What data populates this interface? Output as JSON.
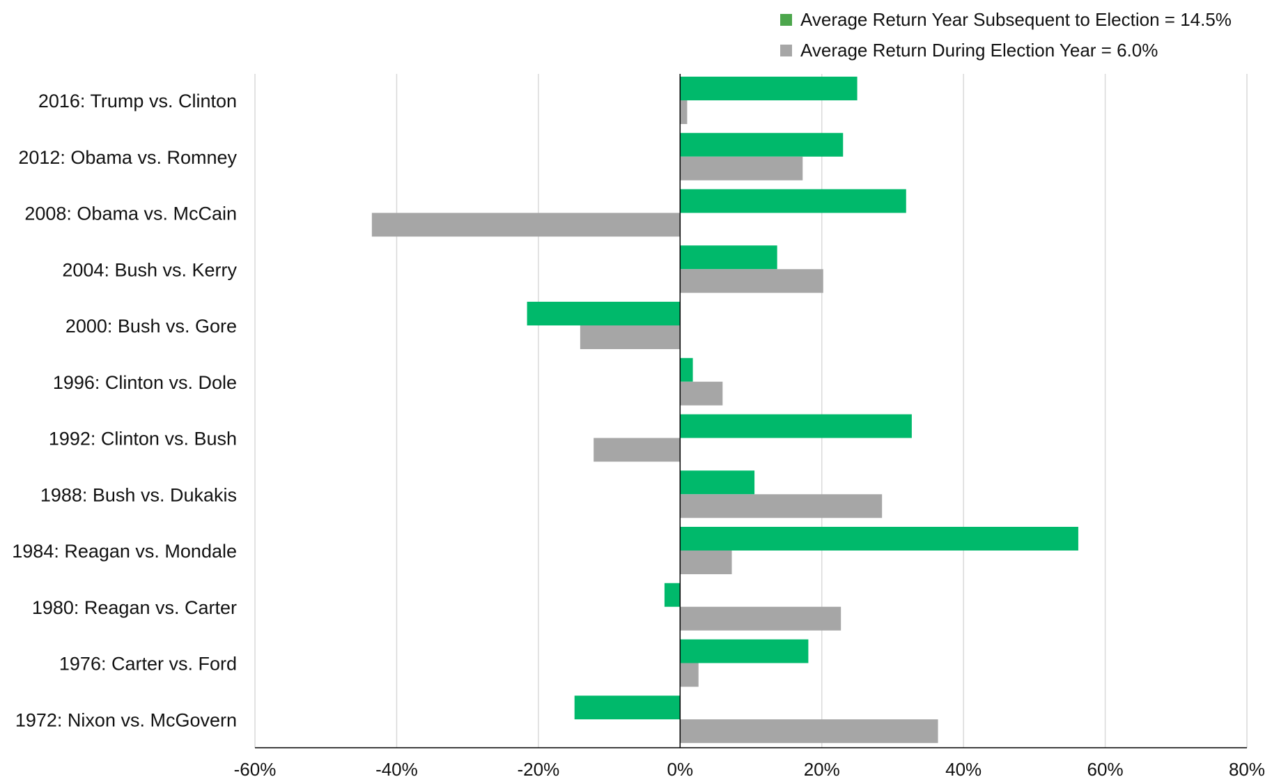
{
  "chart_data": {
    "type": "bar",
    "orientation": "horizontal",
    "categories": [
      "2016: Trump vs. Clinton",
      "2012: Obama vs. Romney",
      "2008: Obama vs. McCain",
      "2004: Bush vs. Kerry",
      "2000: Bush vs. Gore",
      "1996: Clinton vs. Dole",
      "1992: Clinton vs. Bush",
      "1988: Bush vs. Dukakis",
      "1984: Reagan vs. Mondale",
      "1980: Reagan vs. Carter",
      "1976: Carter vs. Ford",
      "1972: Nixon vs. McGovern"
    ],
    "series": [
      {
        "name": "Average Return Year Subsequent to Election = 14.5%",
        "color": "#00b96b",
        "legend_swatch_color": "#4ca64c",
        "values": [
          25.0,
          23.0,
          31.9,
          13.7,
          -21.6,
          1.8,
          32.7,
          10.5,
          56.2,
          -2.2,
          18.1,
          -14.9
        ]
      },
      {
        "name": "Average Return During Election Year = 6.0%",
        "color": "#a6a6a6",
        "legend_swatch_color": "#a6a6a6",
        "values": [
          1.0,
          17.3,
          -43.5,
          20.2,
          -14.1,
          6.0,
          -12.2,
          28.5,
          7.3,
          22.7,
          2.6,
          36.4
        ]
      }
    ],
    "xlim": [
      -60,
      80
    ],
    "xticks": [
      "-60%",
      "-40%",
      "-20%",
      "0%",
      "20%",
      "40%",
      "60%",
      "80%"
    ],
    "xtick_values": [
      -60,
      -40,
      -20,
      0,
      20,
      40,
      60,
      80
    ],
    "grid": "vertical",
    "legend_position": "top-right",
    "title": "",
    "xlabel": "",
    "ylabel": ""
  }
}
